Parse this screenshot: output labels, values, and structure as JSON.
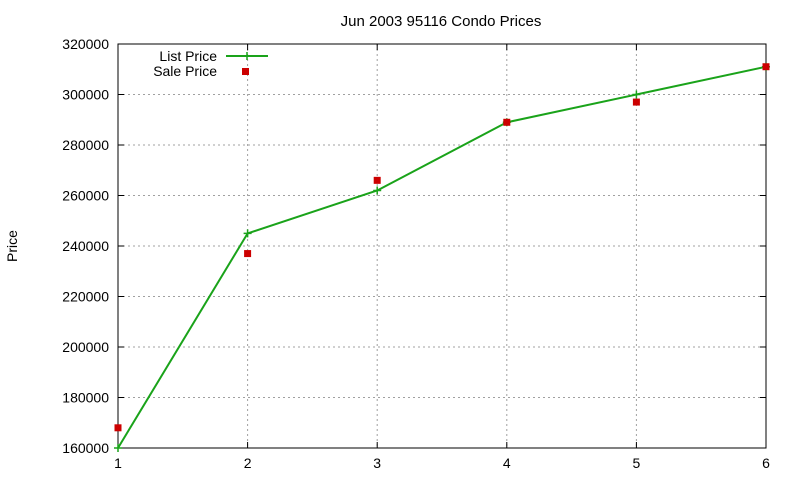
{
  "chart_data": {
    "type": "line",
    "title": "Jun 2003 95116 Condo Prices",
    "xlabel": "",
    "ylabel": "Price",
    "x": [
      1,
      2,
      3,
      4,
      5,
      6
    ],
    "xlim": [
      1,
      6
    ],
    "ylim": [
      160000,
      320000
    ],
    "xticks": [
      "1",
      "2",
      "3",
      "4",
      "5",
      "6"
    ],
    "yticks": [
      "160000",
      "180000",
      "200000",
      "220000",
      "240000",
      "260000",
      "280000",
      "300000",
      "320000"
    ],
    "grid": true,
    "legend_position": "top-left",
    "series": [
      {
        "name": "List Price",
        "kind": "line",
        "color": "#1aa31a",
        "marker": "plus",
        "values": [
          160000,
          245000,
          262000,
          289000,
          300000,
          311000
        ]
      },
      {
        "name": "Sale Price",
        "kind": "scatter",
        "color": "#cc0000",
        "marker": "square",
        "values": [
          168000,
          237000,
          266000,
          289000,
          297000,
          311000
        ]
      }
    ]
  }
}
